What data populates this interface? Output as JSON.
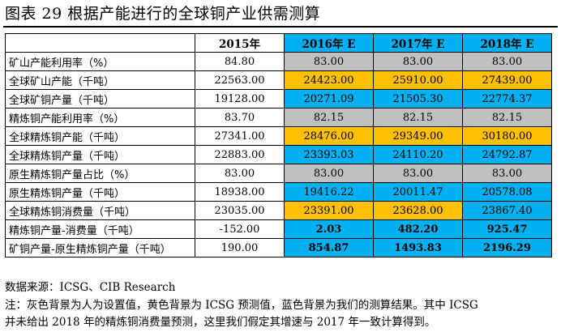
{
  "title": "图表 29 根据产能进行的全球铜产业供需测算",
  "columns": [
    "",
    "2015年",
    "2016年 E",
    "2017年 E",
    "2018年 E"
  ],
  "rows": [
    {
      "label": "矿山产能利用率（%）",
      "values": [
        "84.80",
        "83.00",
        "83.00",
        "83.00"
      ],
      "colors": [
        "",
        "gray",
        "gray",
        "gray"
      ],
      "bold": false
    },
    {
      "label": "全球矿山产能（千吨）",
      "values": [
        "22563.00",
        "24423.00",
        "25910.00",
        "27439.00"
      ],
      "colors": [
        "",
        "orange",
        "orange",
        "orange"
      ],
      "bold": false
    },
    {
      "label": "全球矿铜产量（千吨）",
      "values": [
        "19128.00",
        "20271.09",
        "21505.30",
        "22774.37"
      ],
      "colors": [
        "",
        "blue",
        "blue",
        "blue"
      ],
      "bold": false
    },
    {
      "label": "精炼铜产能利用率（%）",
      "values": [
        "83.70",
        "82.15",
        "82.15",
        "82.15"
      ],
      "colors": [
        "",
        "gray",
        "gray",
        "gray"
      ],
      "bold": false
    },
    {
      "label": "全球精炼铜产能（千吨）",
      "values": [
        "27341.00",
        "28476.00",
        "29349.00",
        "30180.00"
      ],
      "colors": [
        "",
        "orange",
        "orange",
        "orange"
      ],
      "bold": false
    },
    {
      "label": "全球精炼铜产量（千吨）",
      "values": [
        "22883.00",
        "23393.03",
        "24110.20",
        "24792.87"
      ],
      "colors": [
        "",
        "blue",
        "blue",
        "blue"
      ],
      "bold": false
    },
    {
      "label": "原生精炼铜产量占比（%）",
      "values": [
        "83.00",
        "83.00",
        "83.00",
        "83.00"
      ],
      "colors": [
        "",
        "gray",
        "gray",
        "gray"
      ],
      "bold": false
    },
    {
      "label": "原生精炼铜产量（千吨）",
      "values": [
        "18938.00",
        "19416.22",
        "20011.47",
        "20578.08"
      ],
      "colors": [
        "",
        "blue",
        "blue",
        "blue"
      ],
      "bold": false
    },
    {
      "label": "全球精炼铜消费量（千吨）",
      "values": [
        "23035.00",
        "23391.00",
        "23628.00",
        "23867.40"
      ],
      "colors": [
        "",
        "orange",
        "orange",
        "blue"
      ],
      "bold": false
    },
    {
      "label": "精炼铜产量-消费量（千吨）",
      "values": [
        "-152.00",
        "2.03",
        "482.20",
        "925.47"
      ],
      "colors": [
        "",
        "blue",
        "blue",
        "blue"
      ],
      "bold": true
    },
    {
      "label": "矿铜产量-原生精炼铜产量（千吨）",
      "values": [
        "190.00",
        "854.87",
        "1493.83",
        "2196.29"
      ],
      "colors": [
        "",
        "blue",
        "blue",
        "blue"
      ],
      "bold": true
    }
  ],
  "source": "数据来源：ICSG、CIB Research",
  "note_line1": "注：灰色背景为人为设置值，黄色背景为 ICSG 预测值，蓝色背景为我们的测算结果。其中 ICSG",
  "note_line2": "并未给出 2018 年的精炼铜消费量预测，这里我们假定其增速与 2017 年一致计算得到。",
  "colors": {
    "gray": "#c0c0c0",
    "orange": "#ffc000",
    "blue": "#00b0f0"
  }
}
